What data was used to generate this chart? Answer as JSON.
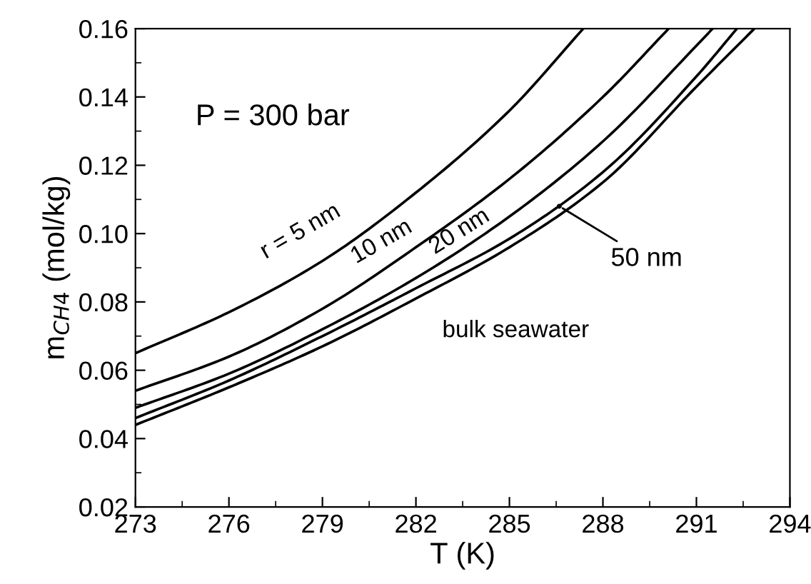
{
  "chart_data": {
    "type": "line",
    "xlabel": "T (K)",
    "ylabel": "m$_{CH4}$ (mol/kg)",
    "xlim": [
      273,
      294
    ],
    "xticks": [
      273,
      276,
      279,
      282,
      285,
      288,
      291,
      294
    ],
    "ylim": [
      0.02,
      0.16
    ],
    "yticks": [
      0.02,
      0.04,
      0.06,
      0.08,
      {
        "value": 0.1,
        "label": "0.10"
      },
      0.12,
      0.14,
      0.16
    ],
    "grid": false,
    "legend": false,
    "marker": "none",
    "line_style": "solid",
    "annotations": [
      "P = 300 bar",
      {
        "text": "50 nm",
        "x": 286.6,
        "y": 0.108
      }
    ],
    "series": [
      {
        "name": "r = 5 nm",
        "color": "#000000",
        "x": [
          273,
          276,
          279,
          282,
          285,
          287.37
        ],
        "values": [
          0.065,
          0.077,
          0.092,
          0.112,
          0.136,
          0.16
        ]
      },
      {
        "name": "10 nm",
        "color": "#000000",
        "x": [
          273,
          276,
          279,
          282,
          285,
          288,
          290.11
        ],
        "values": [
          0.054,
          0.064,
          0.078,
          0.096,
          0.116,
          0.14,
          0.16
        ]
      },
      {
        "name": "20 nm",
        "color": "#000000",
        "x": [
          273,
          276,
          279,
          282,
          285,
          288,
          291,
          291.52
        ],
        "values": [
          0.049,
          0.059,
          0.072,
          0.087,
          0.105,
          0.127,
          0.155,
          0.16
        ]
      },
      {
        "color": "#000000",
        "x": [
          273,
          276,
          279,
          282,
          285,
          288,
          291,
          292.3
        ],
        "values": [
          0.046,
          0.057,
          0.07,
          0.084,
          0.0985,
          0.118,
          0.146,
          0.16
        ]
      },
      {
        "name": "bulk seawater",
        "color": "#000000",
        "x": [
          273,
          276,
          279,
          282,
          285,
          288,
          291,
          292.86
        ],
        "values": [
          0.044,
          0.055,
          0.067,
          0.081,
          0.096,
          0.115,
          0.143,
          0.16
        ]
      }
    ]
  }
}
